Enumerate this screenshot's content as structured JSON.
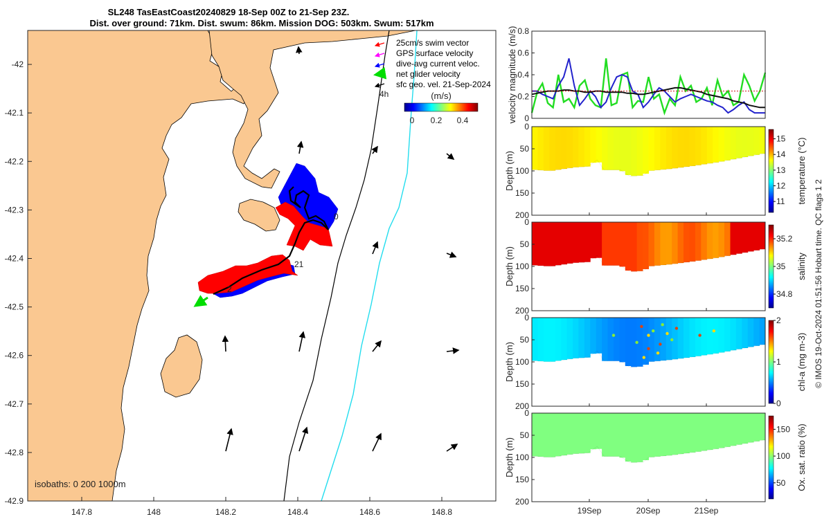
{
  "chart_data": [
    {
      "type": "map",
      "title_line1": "SL248 TasEastCoast20240829 18-Sep 00Z to 21-Sep 23Z.",
      "title_line2": "Dist. over ground: 71km. Dist. swum: 86km. Mission DOG: 503km. Swum: 517km",
      "xlim": [
        147.65,
        148.95
      ],
      "ylim": [
        -42.9,
        -41.93
      ],
      "xticks": [
        147.8,
        148,
        148.2,
        148.4,
        148.6,
        148.8
      ],
      "xtick_labels": [
        "147.8",
        "148",
        "148.2",
        "148.4",
        "148.6",
        "148.8"
      ],
      "yticks": [
        -42,
        -42.1,
        -42.2,
        -42.3,
        -42.4,
        -42.5,
        -42.6,
        -42.7,
        -42.8,
        -42.9
      ],
      "ytick_labels": [
        "-42",
        "-42.1",
        "-42.2",
        "-42.3",
        "-42.4",
        "-42.5",
        "-42.6",
        "-42.7",
        "-42.8",
        "-42.9"
      ],
      "legend": [
        {
          "label": "25cm/s swim vector",
          "color": "#ff0000"
        },
        {
          "label": "GPS surface velocity",
          "color": "#ff00ff"
        },
        {
          "label": "dive-avg current veloc.",
          "color": "#0000ff"
        },
        {
          "label": "net glider velocity",
          "color": "#00dd00"
        },
        {
          "label": "sfc geo. vel. 21-Sep-2024",
          "color": "#000000"
        }
      ],
      "colorbar": {
        "unit": "(m/s)",
        "ticks": [
          "0",
          "0.2",
          "0.4"
        ]
      },
      "isobath_label": "isobaths: 0   200  1000m",
      "track_annotations": [
        "4h",
        "21",
        "2",
        "0"
      ],
      "glider_track": [
        [
          148.12,
          -42.505
        ],
        [
          148.18,
          -42.485
        ],
        [
          148.25,
          -42.45
        ],
        [
          148.33,
          -42.415
        ],
        [
          148.39,
          -42.39
        ],
        [
          148.42,
          -42.36
        ],
        [
          148.43,
          -42.33
        ],
        [
          148.45,
          -42.32
        ],
        [
          148.47,
          -42.33
        ]
      ]
    },
    {
      "type": "line",
      "ylabel": "velocity magnitude (m/s)",
      "ylim": [
        0,
        0.8
      ],
      "yticks": [
        "0",
        "0.2",
        "0.4",
        "0.6",
        "0.8"
      ],
      "series": [
        {
          "name": "net glider velocity",
          "color": "#22dd22",
          "values": [
            0.05,
            0.24,
            0.32,
            0.14,
            0.1,
            0.4,
            0.15,
            0.18,
            0.1,
            0.3,
            0.35,
            0.18,
            0.12,
            0.1,
            0.55,
            0.12,
            0.14,
            0.4,
            0.42,
            0.1,
            0.16,
            0.15,
            0.38,
            0.18,
            0.22,
            0.05,
            0.18,
            0.12,
            0.38,
            0.25,
            0.3,
            0.15,
            0.18,
            0.28,
            0.12,
            0.35,
            0.2,
            0.25,
            0.12,
            0.15,
            0.4,
            0.3,
            0.16,
            0.25,
            0.42
          ]
        },
        {
          "name": "dive-avg current veloc.",
          "color": "#2222cc",
          "values": [
            0.25,
            0.25,
            0.22,
            0.2,
            0.18,
            0.3,
            0.38,
            0.55,
            0.3,
            0.12,
            0.18,
            0.25,
            0.2,
            0.1,
            0.15,
            0.28,
            0.38,
            0.4,
            0.38,
            0.25,
            0.22,
            0.1,
            0.15,
            0.22,
            0.28,
            0.25,
            0.2,
            0.15,
            0.18,
            0.2,
            0.22,
            0.2,
            0.18,
            0.16,
            0.15,
            0.12,
            0.1,
            0.05,
            0.08,
            0.12,
            0.15,
            0.08,
            0.05,
            0.05,
            0.05
          ]
        },
        {
          "name": "sfc geo. vel.",
          "color": "#111111",
          "values": [
            0.22,
            0.23,
            0.24,
            0.25,
            0.25,
            0.25,
            0.26,
            0.26,
            0.25,
            0.25,
            0.24,
            0.24,
            0.25,
            0.25,
            0.24,
            0.24,
            0.24,
            0.24,
            0.23,
            0.23,
            0.22,
            0.22,
            0.23,
            0.24,
            0.25,
            0.26,
            0.27,
            0.28,
            0.28,
            0.27,
            0.26,
            0.25,
            0.24,
            0.22,
            0.21,
            0.2,
            0.19,
            0.18,
            0.16,
            0.15,
            0.14,
            0.12,
            0.11,
            0.1,
            0.1
          ]
        },
        {
          "name": "swim speed",
          "color": "#cc1111",
          "values": [
            0.25,
            0.25,
            0.25,
            0.25,
            0.25,
            0.25,
            0.25,
            0.25,
            0.25,
            0.25,
            0.25,
            0.25,
            0.25,
            0.25,
            0.25,
            0.25,
            0.25,
            0.25,
            0.25,
            0.25,
            0.25,
            0.25,
            0.25,
            0.25,
            0.25,
            0.25,
            0.25,
            0.25,
            0.25,
            0.25,
            0.25,
            0.25,
            0.25,
            0.25,
            0.25,
            0.25,
            0.25,
            0.25,
            0.25,
            0.25,
            0.25,
            0.25,
            0.25,
            0.25,
            0.25
          ]
        }
      ]
    },
    {
      "type": "section",
      "var": "temperature",
      "ylabel": "Depth (m)",
      "cblabel": "temperature (°C)",
      "yticks": [
        "0",
        "50",
        "100",
        "150",
        "200"
      ],
      "cbticks": [
        "11",
        "12",
        "13",
        "14",
        "15"
      ],
      "cbrange": [
        10.3,
        15.6
      ],
      "typical_value": 13.6
    },
    {
      "type": "section",
      "var": "salinity",
      "ylabel": "Depth (m)",
      "cblabel": "salinity",
      "yticks": [
        "0",
        "50",
        "100",
        "150",
        "200"
      ],
      "cbticks": [
        "34.8",
        "35",
        "35.2"
      ],
      "cbrange": [
        34.7,
        35.3
      ],
      "typical_value": 35.22
    },
    {
      "type": "section",
      "var": "chl-a",
      "ylabel": "Depth (m)",
      "cblabel": "chl-a (mg m-3)",
      "yticks": [
        "0",
        "50",
        "100",
        "150",
        "200"
      ],
      "cbticks": [
        "0",
        "1",
        "2"
      ],
      "cbrange": [
        0,
        2
      ],
      "typical_value": 0.45
    },
    {
      "type": "section",
      "var": "oxygen",
      "ylabel": "Depth (m)",
      "cblabel": "Ox. sat. ratio (%)",
      "yticks": [
        "0",
        "50",
        "100",
        "150",
        "200"
      ],
      "cbticks": [
        "50",
        "100",
        "150"
      ],
      "cbrange": [
        20,
        175
      ],
      "typical_value": 98,
      "xtick_labels": [
        "19Sep",
        "20Sep",
        "21Sep"
      ]
    }
  ],
  "footer": "© IMOS 19-Oct-2024 01:51:56 Hobart time. QC flags 1  2"
}
